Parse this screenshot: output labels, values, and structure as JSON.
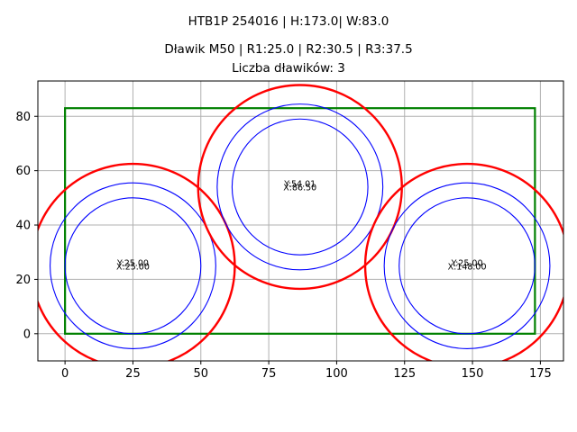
{
  "titles": {
    "line1": "HTB1P 254016 | H:173.0| W:83.0",
    "line2": "Dławik M50 | R1:25.0 | R2:30.5 | R3:37.5",
    "line3": "Liczba dławików: 3"
  },
  "chart_data": {
    "type": "scatter",
    "title": "HTB1P 254016 | H:173.0| W:83.0 / Dławik M50 | R1:25.0 | R2:30.5 | R3:37.5 / Liczba dławików: 3",
    "xlabel": "",
    "ylabel": "",
    "xlim": [
      -10,
      183.5
    ],
    "ylim": [
      -10,
      93
    ],
    "grid": true,
    "legend": null,
    "x_ticks": [
      "0",
      "25",
      "50",
      "75",
      "100",
      "125",
      "150",
      "175"
    ],
    "y_ticks": [
      "0",
      "20",
      "40",
      "60",
      "80"
    ],
    "rectangle": {
      "x": 0,
      "y": 0,
      "width": 173,
      "height": 83,
      "color": "#008000"
    },
    "radii": {
      "R1": 25.0,
      "R2": 30.5,
      "R3": 37.5
    },
    "colors": {
      "R1": "#0000ff",
      "R2": "#0000ff",
      "R3": "#ff0000",
      "grid": "#b0b0b0"
    },
    "glands": [
      {
        "x": 25.0,
        "y": 25.0,
        "label_y": "Y:25.00",
        "label_x": "X:25.00"
      },
      {
        "x": 86.5,
        "y": 54.01,
        "label_y": "Y:54.01",
        "label_x": "X:86.50"
      },
      {
        "x": 148.0,
        "y": 25.0,
        "label_y": "Y:25.00",
        "label_x": "X:148.00"
      }
    ]
  }
}
